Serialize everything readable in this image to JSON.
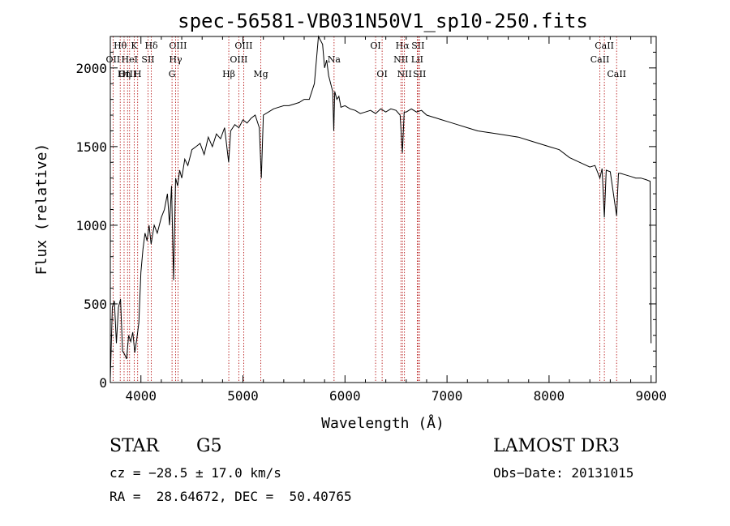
{
  "chart_data": {
    "type": "line",
    "title": "spec-56581-VB031N50V1_sp10-250.fits",
    "xlabel": "Wavelength (Å)",
    "ylabel": "Flux (relative)",
    "xlim": [
      3700,
      9050
    ],
    "ylim": [
      0,
      2200
    ],
    "xticks": [
      4000,
      5000,
      6000,
      7000,
      8000,
      9000
    ],
    "yticks": [
      0,
      500,
      1000,
      1500,
      2000
    ],
    "grid": false,
    "series": [
      {
        "name": "flux",
        "x": [
          3700,
          3720,
          3740,
          3760,
          3780,
          3800,
          3820,
          3840,
          3860,
          3880,
          3900,
          3920,
          3940,
          3960,
          3980,
          4000,
          4020,
          4040,
          4060,
          4080,
          4100,
          4130,
          4160,
          4200,
          4230,
          4260,
          4280,
          4300,
          4320,
          4340,
          4360,
          4380,
          4400,
          4430,
          4460,
          4500,
          4540,
          4580,
          4620,
          4660,
          4700,
          4740,
          4780,
          4820,
          4860,
          4880,
          4920,
          4960,
          5000,
          5040,
          5080,
          5120,
          5160,
          5180,
          5200,
          5250,
          5300,
          5350,
          5400,
          5450,
          5500,
          5550,
          5600,
          5650,
          5700,
          5740,
          5780,
          5800,
          5820,
          5840,
          5860,
          5880,
          5890,
          5900,
          5920,
          5940,
          5960,
          6000,
          6050,
          6100,
          6150,
          6200,
          6250,
          6300,
          6350,
          6400,
          6450,
          6500,
          6540,
          6563,
          6580,
          6600,
          6650,
          6700,
          6750,
          6800,
          6850,
          6900,
          6950,
          7000,
          7100,
          7200,
          7300,
          7400,
          7500,
          7600,
          7700,
          7800,
          7900,
          8000,
          8100,
          8200,
          8300,
          8400,
          8450,
          8498,
          8520,
          8542,
          8560,
          8600,
          8662,
          8680,
          8700,
          8750,
          8800,
          8850,
          8900,
          8950,
          8990,
          9000
        ],
        "y": [
          20,
          480,
          520,
          250,
          480,
          530,
          200,
          180,
          150,
          300,
          260,
          320,
          190,
          280,
          380,
          700,
          850,
          950,
          900,
          1000,
          880,
          1000,
          950,
          1050,
          1100,
          1200,
          1000,
          1250,
          650,
          1300,
          1250,
          1350,
          1300,
          1420,
          1380,
          1480,
          1500,
          1520,
          1450,
          1560,
          1500,
          1580,
          1550,
          1620,
          1400,
          1600,
          1640,
          1620,
          1670,
          1650,
          1680,
          1700,
          1620,
          1300,
          1700,
          1720,
          1740,
          1750,
          1760,
          1760,
          1770,
          1780,
          1800,
          1800,
          1900,
          2200,
          2150,
          2000,
          2050,
          1950,
          1900,
          1850,
          1600,
          1850,
          1800,
          1820,
          1750,
          1760,
          1740,
          1730,
          1710,
          1720,
          1730,
          1710,
          1740,
          1720,
          1740,
          1730,
          1700,
          1460,
          1720,
          1720,
          1740,
          1720,
          1730,
          1700,
          1690,
          1680,
          1670,
          1660,
          1640,
          1620,
          1600,
          1590,
          1580,
          1570,
          1560,
          1540,
          1520,
          1500,
          1480,
          1430,
          1400,
          1370,
          1380,
          1300,
          1360,
          1050,
          1350,
          1340,
          1060,
          1330,
          1330,
          1320,
          1310,
          1300,
          1300,
          1290,
          1280,
          250
        ]
      }
    ],
    "lines": [
      {
        "name": "Hθ",
        "x": 3797,
        "row": 1
      },
      {
        "name": "OII",
        "x": 3727,
        "row": 2
      },
      {
        "name": "OIII",
        "x": 3869,
        "row": 3
      },
      {
        "name": "K",
        "x": 3934,
        "row": 1
      },
      {
        "name": "HeI",
        "x": 3889,
        "row": 2
      },
      {
        "name": "Hη",
        "x": 3835,
        "row": 3
      },
      {
        "name": "SII",
        "x": 4070,
        "row": 2
      },
      {
        "name": "H",
        "x": 3968,
        "row": 3
      },
      {
        "name": "Hδ",
        "x": 4102,
        "row": 1
      },
      {
        "name": "OIII",
        "x": 4363,
        "row": 1
      },
      {
        "name": "Hγ",
        "x": 4340,
        "row": 2
      },
      {
        "name": "G",
        "x": 4305,
        "row": 3
      },
      {
        "name": "Hβ",
        "x": 4861,
        "row": 3
      },
      {
        "name": "OIII",
        "x": 5007,
        "row": 1
      },
      {
        "name": "OIII",
        "x": 4959,
        "row": 2
      },
      {
        "name": "Mg",
        "x": 5175,
        "row": 3
      },
      {
        "name": "Na",
        "x": 5893,
        "row": 2
      },
      {
        "name": "OI",
        "x": 6300,
        "row": 1
      },
      {
        "name": "OI",
        "x": 6364,
        "row": 3
      },
      {
        "name": "Hα",
        "x": 6563,
        "row": 1
      },
      {
        "name": "SII",
        "x": 6716,
        "row": 1
      },
      {
        "name": "NII",
        "x": 6548,
        "row": 2
      },
      {
        "name": "LiI",
        "x": 6708,
        "row": 2
      },
      {
        "name": "NII",
        "x": 6583,
        "row": 3
      },
      {
        "name": "SII",
        "x": 6731,
        "row": 3
      },
      {
        "name": "CaII",
        "x": 8542,
        "row": 1
      },
      {
        "name": "CaII",
        "x": 8498,
        "row": 2
      },
      {
        "name": "CaII",
        "x": 8662,
        "row": 3
      }
    ]
  },
  "info": {
    "class": "STAR",
    "subclass": "G5",
    "survey": "LAMOST DR3",
    "cz": "cz = −28.5 ± 17.0 km/s",
    "obs_date": "Obs−Date: 20131015",
    "radec": "RA =  28.64672, DEC =  50.40765"
  }
}
